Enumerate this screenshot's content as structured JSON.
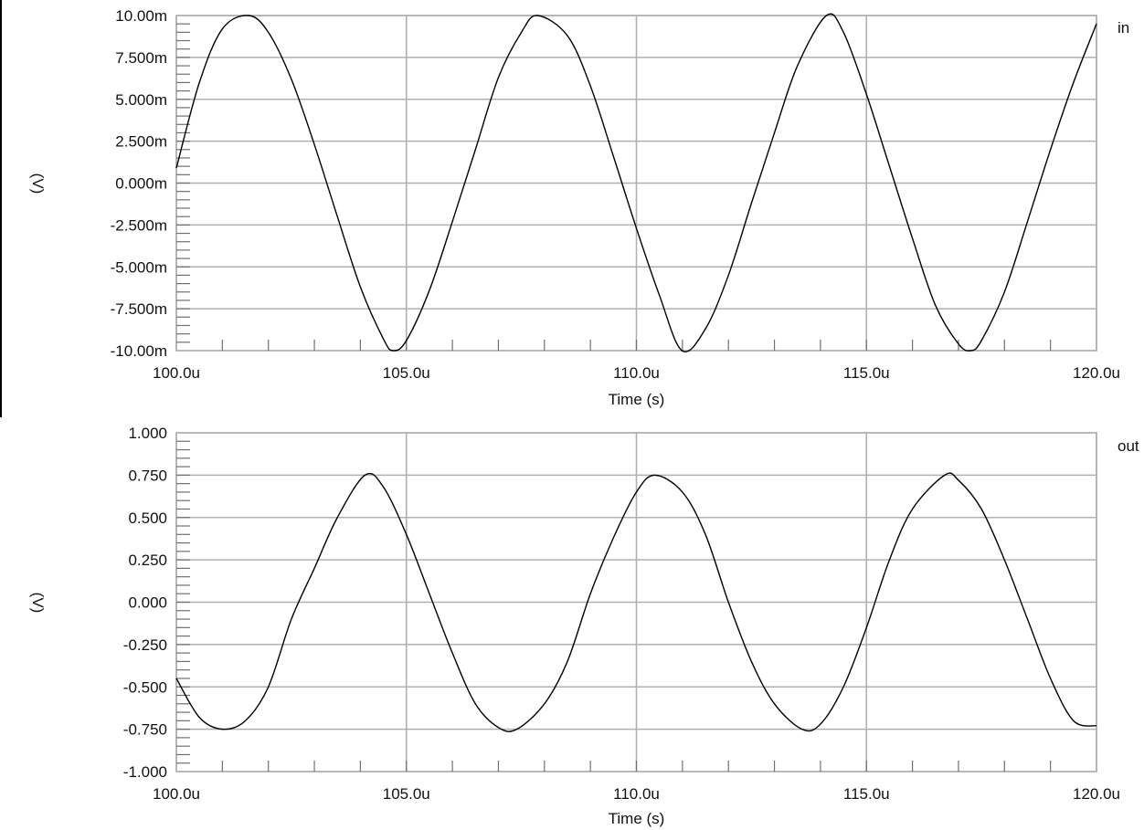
{
  "chart_data": [
    {
      "type": "line",
      "trace_label": "in",
      "xlabel": "Time (s)",
      "ylabel": "(V)",
      "x_ticks": [
        "100.0u",
        "105.0u",
        "110.0u",
        "115.0u",
        "120.0u"
      ],
      "y_ticks": [
        "10.00m",
        "7.500m",
        "5.000m",
        "2.500m",
        "0.000m",
        "-2.500m",
        "-5.000m",
        "-7.500m",
        "-10.00m"
      ],
      "xlim": [
        100.0,
        120.0
      ],
      "ylim": [
        -10.0,
        10.0
      ],
      "x_unit": "u",
      "y_unit": "m",
      "grid": true,
      "series": [
        {
          "name": "in",
          "x": [
            100.0,
            100.5,
            101.0,
            101.57,
            102.0,
            102.5,
            103.0,
            103.5,
            104.0,
            104.5,
            104.71,
            105.0,
            105.5,
            106.0,
            106.5,
            107.0,
            107.5,
            107.85,
            108.5,
            109.0,
            109.5,
            110.0,
            110.5,
            110.99,
            111.5,
            112.0,
            112.5,
            113.0,
            113.5,
            114.13,
            114.5,
            115.0,
            115.5,
            116.0,
            116.5,
            117.0,
            117.27,
            117.5,
            118.0,
            118.5,
            119.0,
            119.5,
            120.0
          ],
          "y": [
            0.9,
            6.0,
            9.2,
            10.0,
            9.0,
            6.2,
            2.3,
            -2.0,
            -6.2,
            -9.3,
            -10.0,
            -9.4,
            -6.4,
            -2.3,
            2.0,
            6.3,
            9.0,
            10.0,
            8.8,
            5.8,
            1.6,
            -2.7,
            -6.7,
            -10.0,
            -8.7,
            -5.5,
            -1.2,
            3.0,
            7.0,
            10.0,
            9.0,
            5.3,
            1.0,
            -3.3,
            -7.3,
            -9.6,
            -10.0,
            -9.4,
            -6.5,
            -2.3,
            2.0,
            6.0,
            9.5
          ]
        }
      ]
    },
    {
      "type": "line",
      "trace_label": "out",
      "xlabel": "Time (s)",
      "ylabel": "(V)",
      "x_ticks": [
        "100.0u",
        "105.0u",
        "110.0u",
        "115.0u",
        "120.0u"
      ],
      "y_ticks": [
        "1.000",
        "0.750",
        "0.500",
        "0.250",
        "0.000",
        "-0.250",
        "-0.500",
        "-0.750",
        "-1.000"
      ],
      "xlim": [
        100.0,
        120.0
      ],
      "ylim": [
        -1.0,
        1.0
      ],
      "x_unit": "u",
      "y_unit": "",
      "grid": true,
      "series": [
        {
          "name": "out",
          "x": [
            100.0,
            100.5,
            101.0,
            101.5,
            102.0,
            102.5,
            103.0,
            103.5,
            104.1,
            104.5,
            105.0,
            105.5,
            106.0,
            106.5,
            107.0,
            107.4,
            108.0,
            108.5,
            109.0,
            109.5,
            110.0,
            110.4,
            111.0,
            111.5,
            112.0,
            112.5,
            113.0,
            113.6,
            114.0,
            114.5,
            115.0,
            115.5,
            116.0,
            116.7,
            117.0,
            117.5,
            118.0,
            118.5,
            119.0,
            119.5,
            120.0
          ],
          "y": [
            -0.45,
            -0.68,
            -0.75,
            -0.7,
            -0.5,
            -0.1,
            0.2,
            0.5,
            0.75,
            0.68,
            0.4,
            0.05,
            -0.3,
            -0.6,
            -0.74,
            -0.75,
            -0.6,
            -0.35,
            0.05,
            0.38,
            0.65,
            0.75,
            0.65,
            0.4,
            0.0,
            -0.35,
            -0.6,
            -0.75,
            -0.72,
            -0.5,
            -0.15,
            0.25,
            0.55,
            0.75,
            0.72,
            0.55,
            0.25,
            -0.1,
            -0.45,
            -0.7,
            -0.73
          ]
        }
      ]
    }
  ]
}
